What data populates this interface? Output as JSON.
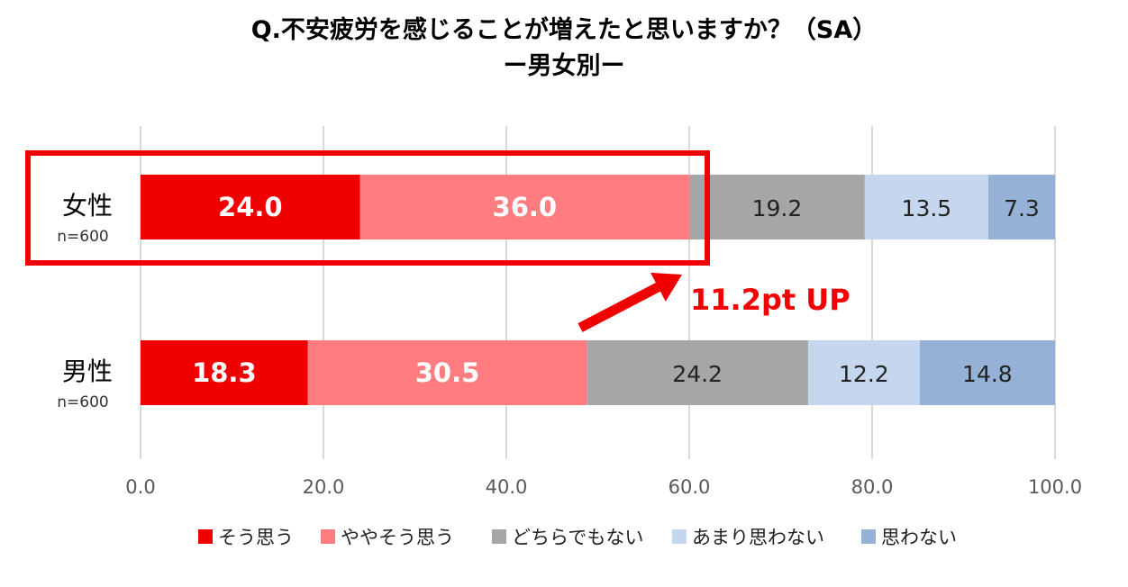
{
  "chart_data": {
    "type": "bar",
    "orientation": "horizontal",
    "stacked": true,
    "title": "Q.不安疲労を感じることが増えたと思いますか？（SA）",
    "subtitle": "ー男女別ー",
    "categories": [
      {
        "label": "女性",
        "n": "n=600"
      },
      {
        "label": "男性",
        "n": "n=600"
      }
    ],
    "series": [
      {
        "name": "そう思う",
        "color": "#f00000",
        "label_color": "#ffffff",
        "bold": true,
        "values": [
          24.0,
          18.3
        ]
      },
      {
        "name": "ややそう思う",
        "color": "#ff7c80",
        "label_color": "#ffffff",
        "bold": true,
        "values": [
          36.0,
          30.5
        ]
      },
      {
        "name": "どちらでもない",
        "color": "#a6a6a6",
        "label_color": "#222222",
        "bold": false,
        "values": [
          19.2,
          24.2
        ]
      },
      {
        "name": "あまり思わない",
        "color": "#c5d6ee",
        "label_color": "#222222",
        "bold": false,
        "values": [
          13.5,
          12.2
        ]
      },
      {
        "name": "思わない",
        "color": "#95b2d6",
        "label_color": "#222222",
        "bold": false,
        "values": [
          7.3,
          14.8
        ]
      }
    ],
    "xlim": [
      0,
      100
    ],
    "xticks": [
      "0.0",
      "20.0",
      "40.0",
      "60.0",
      "80.0",
      "100.0"
    ],
    "grid": true,
    "legend_position": "bottom",
    "annotation": {
      "text": "11.2pt UP",
      "color": "#f00000"
    },
    "highlight_color": "#f00000"
  }
}
